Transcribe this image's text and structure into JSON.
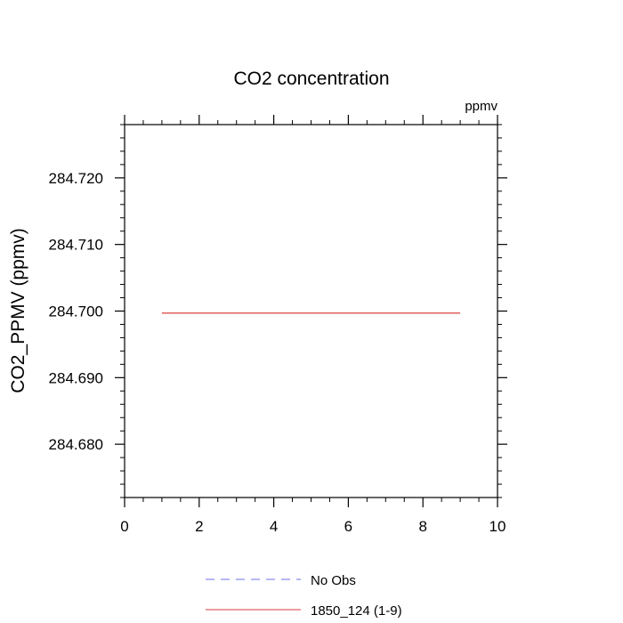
{
  "chart_data": {
    "type": "line",
    "title": "CO2 concentration",
    "units_label": "ppmv",
    "xlabel": "",
    "ylabel": "CO2_PPMV  (ppmv)",
    "xlim": [
      0,
      10
    ],
    "ylim": [
      284.672,
      284.728
    ],
    "x_ticks": [
      0,
      2,
      4,
      6,
      8,
      10
    ],
    "y_ticks": [
      284.68,
      284.69,
      284.7,
      284.71,
      284.72
    ],
    "x_tick_labels": [
      "0",
      "2",
      "4",
      "6",
      "8",
      "10"
    ],
    "y_tick_labels": [
      "284.680",
      "284.690",
      "284.700",
      "284.710",
      "284.720"
    ],
    "grid": false,
    "legend_position": "bottom-center",
    "series": [
      {
        "name": "No Obs",
        "color": "#8c8cf0",
        "dash": "dashed",
        "x": [],
        "y": []
      },
      {
        "name": "1850_124 (1-9)",
        "color": "#e06060",
        "dash": "solid",
        "x": [
          1,
          2,
          3,
          4,
          5,
          6,
          7,
          8,
          9
        ],
        "y": [
          284.6997,
          284.6997,
          284.6997,
          284.6997,
          284.6997,
          284.6997,
          284.6997,
          284.6997,
          284.6997
        ]
      }
    ]
  }
}
